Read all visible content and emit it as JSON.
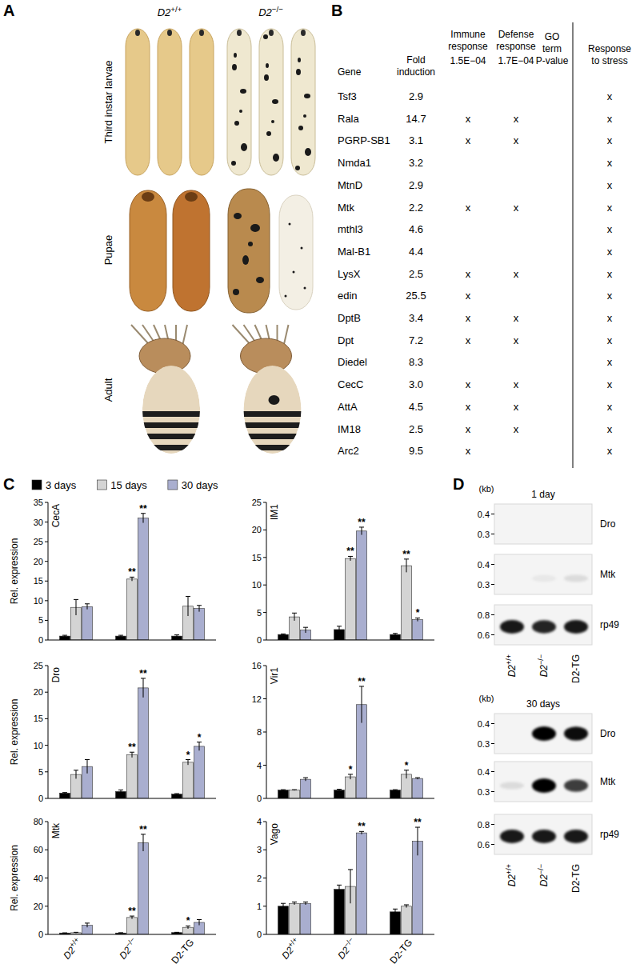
{
  "panel_a": {
    "letter": "A",
    "columns": [
      "D2+/+",
      "D2−/−"
    ],
    "rows": [
      "Third instar larvae",
      "Pupae",
      "Adult"
    ]
  },
  "panel_b": {
    "letter": "B",
    "p_header": "GO term P-value",
    "columns": [
      {
        "label": "Gene"
      },
      {
        "label": "Fold induction"
      },
      {
        "label": "Immune response",
        "p": "1.5E−04"
      },
      {
        "label": "Defense response",
        "p": "1.7E−04"
      },
      {
        "label": "Response to stress"
      }
    ],
    "rows": [
      [
        "Tsf3",
        "2.9",
        null,
        null,
        "x"
      ],
      [
        "Rala",
        "14.7",
        "x",
        "x",
        "x"
      ],
      [
        "PGRP-SB1",
        "3.1",
        "x",
        "x",
        "x"
      ],
      [
        "Nmda1",
        "3.2",
        null,
        null,
        "x"
      ],
      [
        "MtnD",
        "2.9",
        null,
        null,
        "x"
      ],
      [
        "Mtk",
        "2.2",
        "x",
        "x",
        "x"
      ],
      [
        "mthl3",
        "4.6",
        null,
        null,
        "x"
      ],
      [
        "Mal-B1",
        "4.4",
        null,
        null,
        "x"
      ],
      [
        "LysX",
        "2.5",
        "x",
        "x",
        "x"
      ],
      [
        "edin",
        "25.5",
        "x",
        null,
        "x"
      ],
      [
        "DptB",
        "3.4",
        "x",
        "x",
        "x"
      ],
      [
        "Dpt",
        "7.2",
        "x",
        "x",
        "x"
      ],
      [
        "Diedel",
        "8.3",
        null,
        null,
        "x"
      ],
      [
        "CecC",
        "3.0",
        "x",
        "x",
        "x"
      ],
      [
        "AttA",
        "4.5",
        "x",
        "x",
        "x"
      ],
      [
        "IM18",
        "2.5",
        "x",
        "x",
        "x"
      ],
      [
        "Arc2",
        "9.5",
        "x",
        null,
        "x"
      ]
    ]
  },
  "panel_c": {
    "letter": "C"
  },
  "chart_data": [
    {
      "type": "bar",
      "title": "CecA",
      "y_label": "Rel. expression",
      "legend": "top",
      "tick_labels": "y",
      "categories": [
        "D2+/+",
        "D2−/−",
        "D2-TG"
      ],
      "ylim": [
        0,
        35
      ],
      "yticks": [
        0,
        5,
        10,
        15,
        20,
        25,
        30,
        35
      ],
      "series": [
        {
          "name": "3 days",
          "color": "#000000",
          "values": [
            1,
            1,
            1
          ],
          "errors": [
            0.2,
            0.2,
            0.3
          ]
        },
        {
          "name": "15 days",
          "color": "#d4d4d4",
          "values": [
            8.3,
            15.5,
            8.6
          ],
          "errors": [
            2,
            0.5,
            2.5
          ],
          "significance": [
            null,
            "**",
            null
          ]
        },
        {
          "name": "30 days",
          "color": "#a9aecf",
          "values": [
            8.5,
            31,
            8
          ],
          "errors": [
            0.7,
            1.2,
            0.8
          ],
          "significance": [
            null,
            "**",
            null
          ]
        }
      ]
    },
    {
      "type": "bar",
      "title": "IM1",
      "tick_labels": "y",
      "categories": [
        "D2+/+",
        "D2−/−",
        "D2-TG"
      ],
      "ylim": [
        0,
        25
      ],
      "yticks": [
        0,
        5,
        10,
        15,
        20,
        25
      ],
      "series": [
        {
          "color": "#000000",
          "values": [
            1,
            1.9,
            1
          ],
          "errors": [
            0.1,
            0.6,
            0.2
          ]
        },
        {
          "color": "#d4d4d4",
          "values": [
            4.2,
            14.8,
            13.5
          ],
          "errors": [
            0.7,
            0.4,
            1.2
          ],
          "significance": [
            null,
            "**",
            "**"
          ]
        },
        {
          "color": "#a9aecf",
          "values": [
            1.8,
            19.8,
            3.7
          ],
          "errors": [
            0.5,
            0.7,
            0.3
          ],
          "significance": [
            null,
            "**",
            "*"
          ]
        }
      ]
    },
    {
      "type": "bar",
      "title": "Dro",
      "y_label": "Rel. expression",
      "tick_labels": "y",
      "categories": [
        "D2+/+",
        "D2−/−",
        "D2-TG"
      ],
      "ylim": [
        0,
        25
      ],
      "yticks": [
        0,
        5,
        10,
        15,
        20,
        25
      ],
      "series": [
        {
          "color": "#000000",
          "values": [
            1,
            1.3,
            0.8
          ],
          "errors": [
            0.1,
            0.3,
            0.1
          ]
        },
        {
          "color": "#d4d4d4",
          "values": [
            4.5,
            8.2,
            6.8
          ],
          "errors": [
            0.8,
            0.5,
            0.5
          ],
          "significance": [
            null,
            "**",
            "*"
          ]
        },
        {
          "color": "#a9aecf",
          "values": [
            6,
            20.8,
            9.8
          ],
          "errors": [
            1.3,
            1.8,
            0.8
          ],
          "significance": [
            null,
            "**",
            "*"
          ]
        }
      ]
    },
    {
      "type": "bar",
      "title": "Vir1",
      "tick_labels": "y",
      "categories": [
        "D2+/+",
        "D2−/−",
        "D2-TG"
      ],
      "ylim": [
        0,
        16
      ],
      "yticks": [
        0,
        4,
        8,
        12,
        16
      ],
      "series": [
        {
          "color": "#000000",
          "values": [
            1,
            1,
            1
          ],
          "errors": [
            0.05,
            0.1,
            0.05
          ]
        },
        {
          "color": "#d4d4d4",
          "values": [
            1,
            2.6,
            2.9
          ],
          "errors": [
            0.05,
            0.3,
            0.5
          ],
          "significance": [
            null,
            "*",
            "*"
          ]
        },
        {
          "color": "#a9aecf",
          "values": [
            2.3,
            11.3,
            2.4
          ],
          "errors": [
            0.2,
            2.2,
            0.1
          ],
          "significance": [
            null,
            "**",
            null
          ]
        }
      ]
    },
    {
      "type": "bar",
      "title": "Mtk",
      "y_label": "Rel. expression",
      "categories": [
        "D2+/+",
        "D2−/−",
        "D2-TG"
      ],
      "ylim": [
        0,
        80
      ],
      "yticks": [
        0,
        20,
        40,
        60,
        80
      ],
      "series": [
        {
          "color": "#000000",
          "values": [
            1,
            1,
            1.3
          ],
          "errors": [
            0.1,
            0.2,
            0.2
          ]
        },
        {
          "color": "#d4d4d4",
          "values": [
            1.2,
            12,
            5
          ],
          "errors": [
            0.3,
            1,
            1
          ],
          "significance": [
            null,
            "**",
            "*"
          ]
        },
        {
          "color": "#a9aecf",
          "values": [
            6.5,
            65,
            8.5
          ],
          "errors": [
            1.5,
            6,
            2
          ],
          "significance": [
            null,
            "**",
            null
          ]
        }
      ]
    },
    {
      "type": "bar",
      "title": "Vago",
      "categories": [
        "D2+/+",
        "D2−/−",
        "D2-TG"
      ],
      "ylim": [
        0,
        4
      ],
      "yticks": [
        0,
        1,
        2,
        3,
        4
      ],
      "series": [
        {
          "color": "#000000",
          "values": [
            1,
            1.6,
            0.8
          ],
          "errors": [
            0.1,
            0.15,
            0.1
          ]
        },
        {
          "color": "#d4d4d4",
          "values": [
            1.1,
            1.7,
            1
          ],
          "errors": [
            0.05,
            0.6,
            0.05
          ]
        },
        {
          "color": "#a9aecf",
          "values": [
            1.1,
            3.6,
            3.3
          ],
          "errors": [
            0.05,
            0.05,
            0.5
          ],
          "significance": [
            null,
            "**",
            "**"
          ]
        }
      ]
    }
  ],
  "panel_d": {
    "letter": "D",
    "unit": "(kb)",
    "lanes": [
      "D2+/+",
      "D2−/−",
      "D2-TG"
    ],
    "blots": [
      {
        "title": "1 day",
        "probes": [
          {
            "name": "Dro",
            "ylim": [
              0.45,
              0.25
            ],
            "yticks": [
              0.4,
              0.3
            ],
            "band_kb": 0.35,
            "intensity": [
              0,
              0,
              0
            ]
          },
          {
            "name": "Mtk",
            "ylim": [
              0.45,
              0.25
            ],
            "yticks": [
              0.4,
              0.3
            ],
            "band_kb": 0.33,
            "intensity": [
              0,
              0.05,
              0.1
            ]
          },
          {
            "name": "rp49",
            "ylim": [
              0.9,
              0.5
            ],
            "yticks": [
              0.8,
              0.6
            ],
            "band_kb": 0.68,
            "intensity": [
              0.9,
              0.85,
              0.9
            ]
          }
        ]
      },
      {
        "title": "30 days",
        "probes": [
          {
            "name": "Dro",
            "ylim": [
              0.45,
              0.25
            ],
            "yticks": [
              0.4,
              0.3
            ],
            "band_kb": 0.35,
            "intensity": [
              0,
              1,
              0.95
            ]
          },
          {
            "name": "Mtk",
            "ylim": [
              0.45,
              0.25
            ],
            "yticks": [
              0.4,
              0.3
            ],
            "band_kb": 0.33,
            "intensity": [
              0.1,
              1,
              0.75
            ]
          },
          {
            "name": "rp49",
            "ylim": [
              0.9,
              0.5
            ],
            "yticks": [
              0.8,
              0.6
            ],
            "band_kb": 0.68,
            "intensity": [
              0.9,
              0.9,
              0.9
            ]
          }
        ]
      }
    ]
  }
}
